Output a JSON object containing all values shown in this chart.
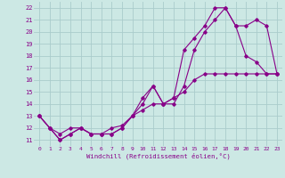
{
  "xlabel": "Windchill (Refroidissement éolien,°C)",
  "bg_color": "#cce8e4",
  "grid_color": "#aacccc",
  "line_color": "#880088",
  "xlim": [
    -0.5,
    23.5
  ],
  "ylim": [
    10.5,
    22.5
  ],
  "yticks": [
    11,
    12,
    13,
    14,
    15,
    16,
    17,
    18,
    19,
    20,
    21,
    22
  ],
  "xticks": [
    0,
    1,
    2,
    3,
    4,
    5,
    6,
    7,
    8,
    9,
    10,
    11,
    12,
    13,
    14,
    15,
    16,
    17,
    18,
    19,
    20,
    21,
    22,
    23
  ],
  "lines": [
    {
      "x": [
        0,
        1,
        2,
        3,
        4,
        5,
        6,
        7,
        8,
        9,
        10,
        11,
        12,
        13,
        14,
        15,
        16,
        17,
        18,
        19,
        20,
        21,
        22,
        23
      ],
      "y": [
        13,
        12,
        11.5,
        12,
        12,
        11.5,
        11.5,
        12,
        12.2,
        13,
        13.5,
        14,
        14,
        14.5,
        15,
        16,
        16.5,
        16.5,
        16.5,
        16.5,
        16.5,
        16.5,
        16.5,
        16.5
      ]
    },
    {
      "x": [
        0,
        1,
        2,
        3,
        4,
        5,
        6,
        7,
        8,
        9,
        10,
        11,
        12,
        13,
        14,
        15,
        16,
        17,
        18,
        19,
        20,
        21,
        22,
        23
      ],
      "y": [
        13,
        12,
        11,
        11.5,
        12,
        11.5,
        11.5,
        11.5,
        12,
        13,
        14,
        15.5,
        14,
        14,
        15.5,
        18.5,
        20,
        21,
        22,
        20.5,
        18,
        17.5,
        16.5,
        16.5
      ]
    },
    {
      "x": [
        0,
        1,
        2,
        3,
        4,
        5,
        6,
        7,
        8,
        9,
        10,
        11,
        12,
        13,
        14,
        15,
        16,
        17,
        18,
        19,
        20,
        21,
        22,
        23
      ],
      "y": [
        13,
        12,
        11,
        11.5,
        12,
        11.5,
        11.5,
        11.5,
        12,
        13,
        14.5,
        15.5,
        14,
        14.5,
        18.5,
        19.5,
        20.5,
        22,
        22,
        20.5,
        20.5,
        21,
        20.5,
        16.5
      ]
    }
  ]
}
